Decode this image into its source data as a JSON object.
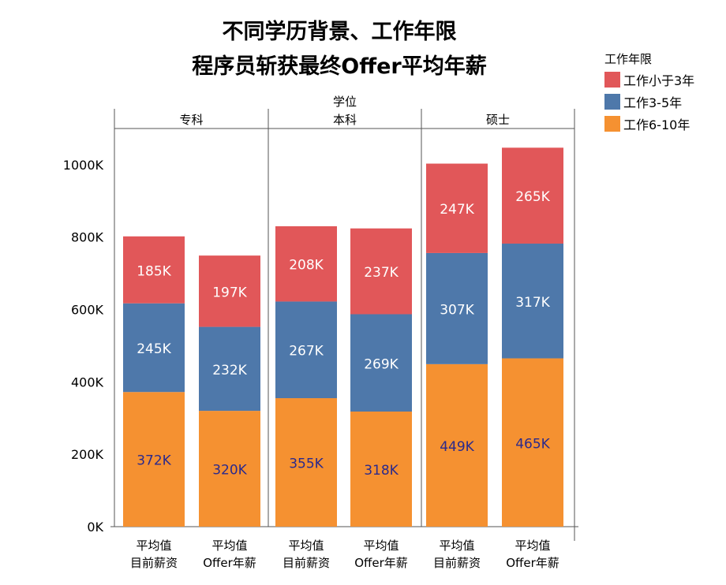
{
  "chart_data": {
    "type": "bar",
    "stacked": true,
    "title_lines": [
      "不同学历背景、工作年限",
      "程序员斩获最终Offer平均年薪"
    ],
    "column_header_label": "学位",
    "groups": [
      "专科",
      "本科",
      "硕士"
    ],
    "categories": [
      {
        "group": "专科",
        "line1": "平均值",
        "line2": "目前薪资"
      },
      {
        "group": "专科",
        "line1": "平均值",
        "line2": "Offer年薪"
      },
      {
        "group": "本科",
        "line1": "平均值",
        "line2": "目前薪资"
      },
      {
        "group": "本科",
        "line1": "平均值",
        "line2": "Offer年薪"
      },
      {
        "group": "硕士",
        "line1": "平均值",
        "line2": "目前薪资"
      },
      {
        "group": "硕士",
        "line1": "平均值",
        "line2": "Offer年薪"
      }
    ],
    "series": [
      {
        "name": "工作6-10年",
        "color": "#f59131",
        "label_color": "#2b2a8c",
        "values": [
          372,
          320,
          355,
          318,
          449,
          465
        ],
        "labels": [
          "372K",
          "320K",
          "355K",
          "318K",
          "449K",
          "465K"
        ]
      },
      {
        "name": "工作3-5年",
        "color": "#4e78aa",
        "label_color": "#ffffff",
        "values": [
          245,
          232,
          267,
          269,
          307,
          317
        ],
        "labels": [
          "245K",
          "232K",
          "267K",
          "269K",
          "307K",
          "317K"
        ]
      },
      {
        "name": "工作小于3年",
        "color": "#e15759",
        "label_color": "#ffffff",
        "values": [
          185,
          197,
          208,
          237,
          247,
          265
        ],
        "labels": [
          "185K",
          "197K",
          "208K",
          "237K",
          "247K",
          "265K"
        ]
      }
    ],
    "legend": {
      "title": "工作年限",
      "position": "top-right",
      "items": [
        {
          "name": "工作小于3年",
          "color": "#e15759"
        },
        {
          "name": "工作3-5年",
          "color": "#4e78aa"
        },
        {
          "name": "工作6-10年",
          "color": "#f59131"
        }
      ]
    },
    "y_axis": {
      "min": 0,
      "max": 1100,
      "ticks": [
        0,
        200,
        400,
        600,
        800,
        1000
      ],
      "tick_labels": [
        "0K",
        "200K",
        "400K",
        "600K",
        "800K",
        "1000K"
      ]
    },
    "grid": false
  }
}
